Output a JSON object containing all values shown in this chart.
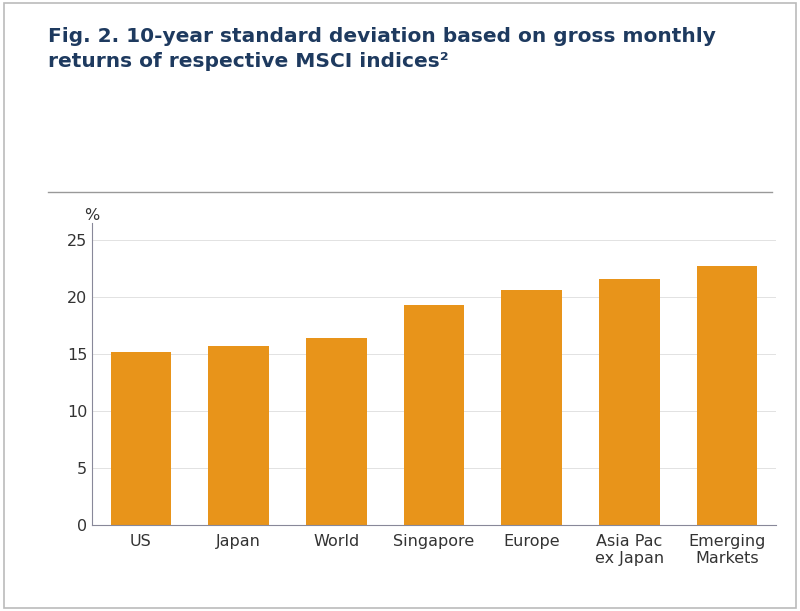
{
  "title_line1": "Fig. 2. 10-year standard deviation based on gross monthly",
  "title_line2": "returns of respective MSCI indices²",
  "categories": [
    "US",
    "Japan",
    "World",
    "Singapore",
    "Europe",
    "Asia Pac\nex Japan",
    "Emerging\nMarkets"
  ],
  "values": [
    15.2,
    15.7,
    16.4,
    19.3,
    20.6,
    21.6,
    22.7
  ],
  "bar_color": "#E8941A",
  "ylabel": "%",
  "yticks": [
    0,
    5,
    10,
    15,
    20,
    25
  ],
  "ylim": [
    0,
    26.5
  ],
  "background_color": "#FFFFFF",
  "border_color": "#BBBBBB",
  "title_color": "#1E3A5F",
  "tick_label_color": "#333333",
  "spine_color": "#888899",
  "separator_color": "#999999",
  "title_fontsize": 14.5,
  "tick_fontsize": 11.5,
  "ylabel_fontsize": 11.5
}
